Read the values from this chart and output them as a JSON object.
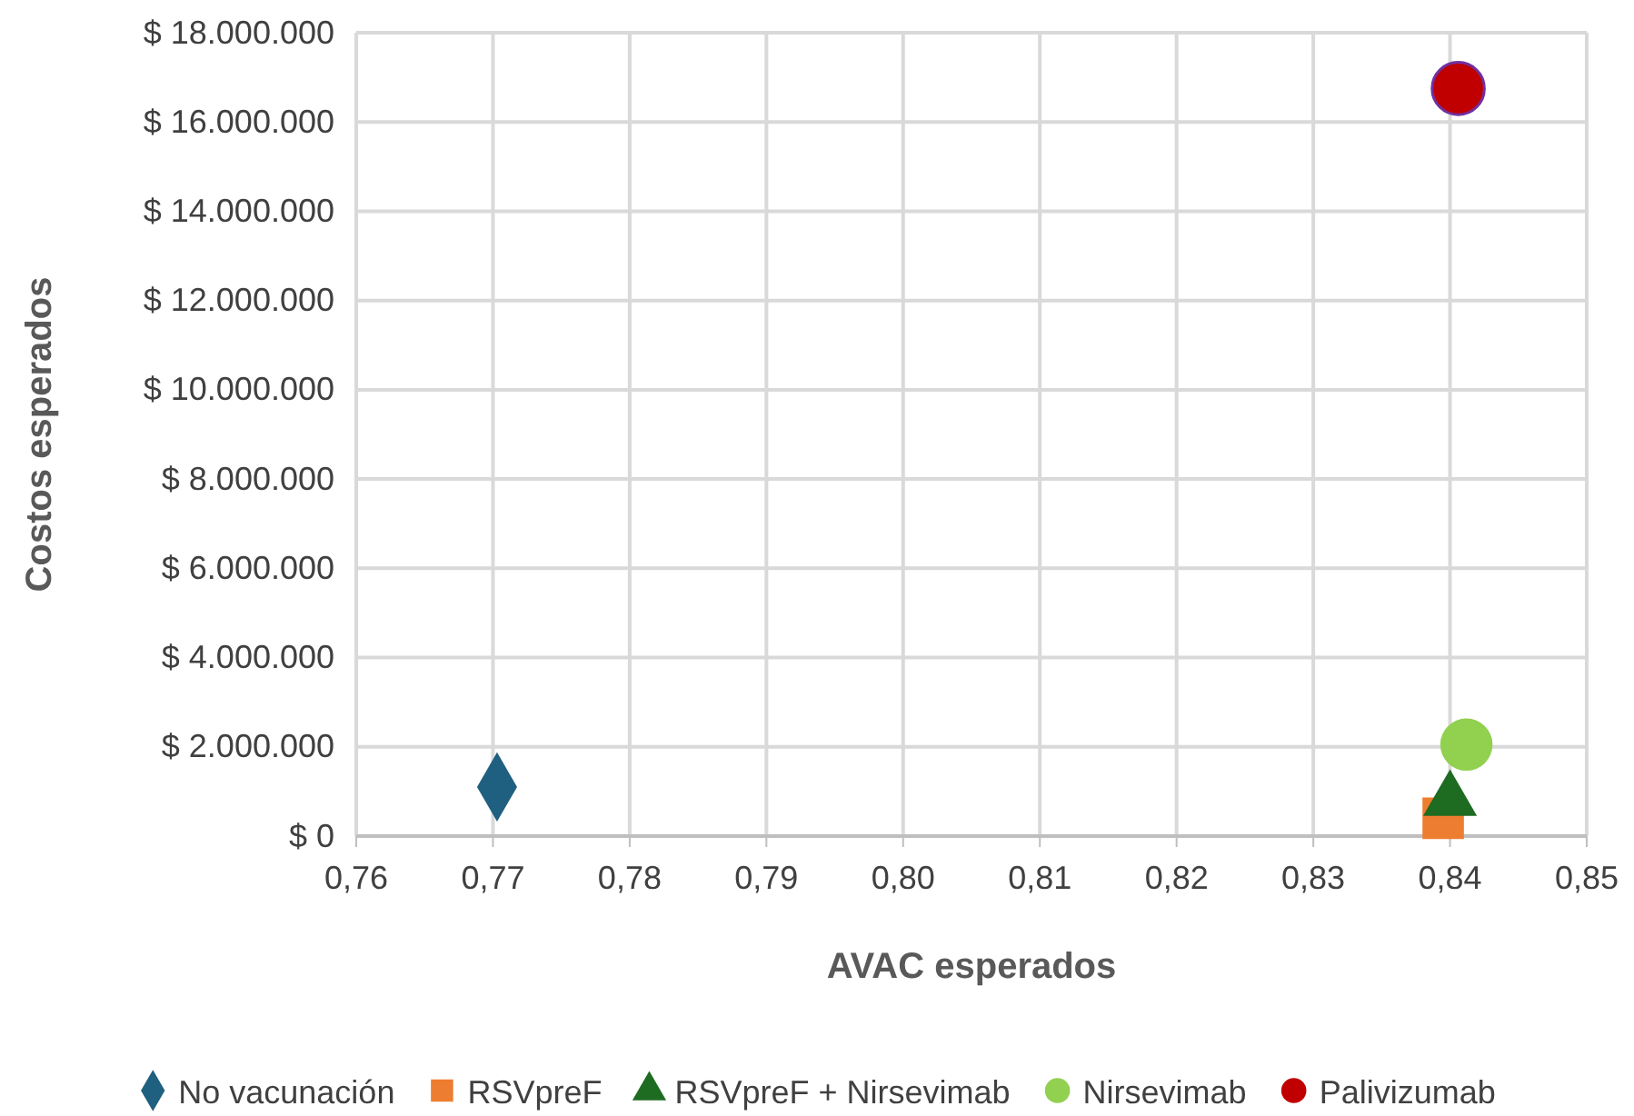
{
  "chart_data": {
    "type": "scatter",
    "xlabel": "AVAC esperados",
    "ylabel": "Costos esperados",
    "xlim": [
      0.76,
      0.85
    ],
    "xticks": [
      {
        "value": 0.76,
        "label": "0,76"
      },
      {
        "value": 0.77,
        "label": "0,77"
      },
      {
        "value": 0.78,
        "label": "0,78"
      },
      {
        "value": 0.79,
        "label": "0,79"
      },
      {
        "value": 0.8,
        "label": "0,80"
      },
      {
        "value": 0.81,
        "label": "0,81"
      },
      {
        "value": 0.82,
        "label": "0,82"
      },
      {
        "value": 0.83,
        "label": "0,83"
      },
      {
        "value": 0.84,
        "label": "0,84"
      },
      {
        "value": 0.85,
        "label": "0,85"
      }
    ],
    "ylim": [
      0,
      18000000
    ],
    "yticks": [
      {
        "value": 0,
        "label": "$ 0"
      },
      {
        "value": 2000000,
        "label": "$ 2.000.000"
      },
      {
        "value": 4000000,
        "label": "$ 4.000.000"
      },
      {
        "value": 6000000,
        "label": "$ 6.000.000"
      },
      {
        "value": 8000000,
        "label": "$ 8.000.000"
      },
      {
        "value": 10000000,
        "label": "$ 10.000.000"
      },
      {
        "value": 12000000,
        "label": "$ 12.000.000"
      },
      {
        "value": 14000000,
        "label": "$ 14.000.000"
      },
      {
        "value": 16000000,
        "label": "$ 16.000.000"
      },
      {
        "value": 18000000,
        "label": "$ 18.000.000"
      }
    ],
    "grid": true,
    "legend": "bottom",
    "series": [
      {
        "name": "No vacunación",
        "color": "#1f5f7f",
        "marker": "diamond",
        "x": [
          0.7703
        ],
        "values": [
          1100000
        ]
      },
      {
        "name": "RSVpreF",
        "color": "#ed7d31",
        "marker": "square",
        "x": [
          0.8395
        ],
        "values": [
          400000
        ]
      },
      {
        "name": "RSVpreF + Nirsevimab",
        "color": "#1e6b22",
        "marker": "triangle",
        "x": [
          0.84
        ],
        "values": [
          800000
        ]
      },
      {
        "name": "Nirsevimab",
        "color": "#92d050",
        "marker": "circle",
        "x": [
          0.8412
        ],
        "values": [
          2050000
        ]
      },
      {
        "name": "Palivizumab",
        "color": "#c00000",
        "marker": "circle",
        "x": [
          0.8406
        ],
        "values": [
          16750000
        ]
      }
    ]
  }
}
